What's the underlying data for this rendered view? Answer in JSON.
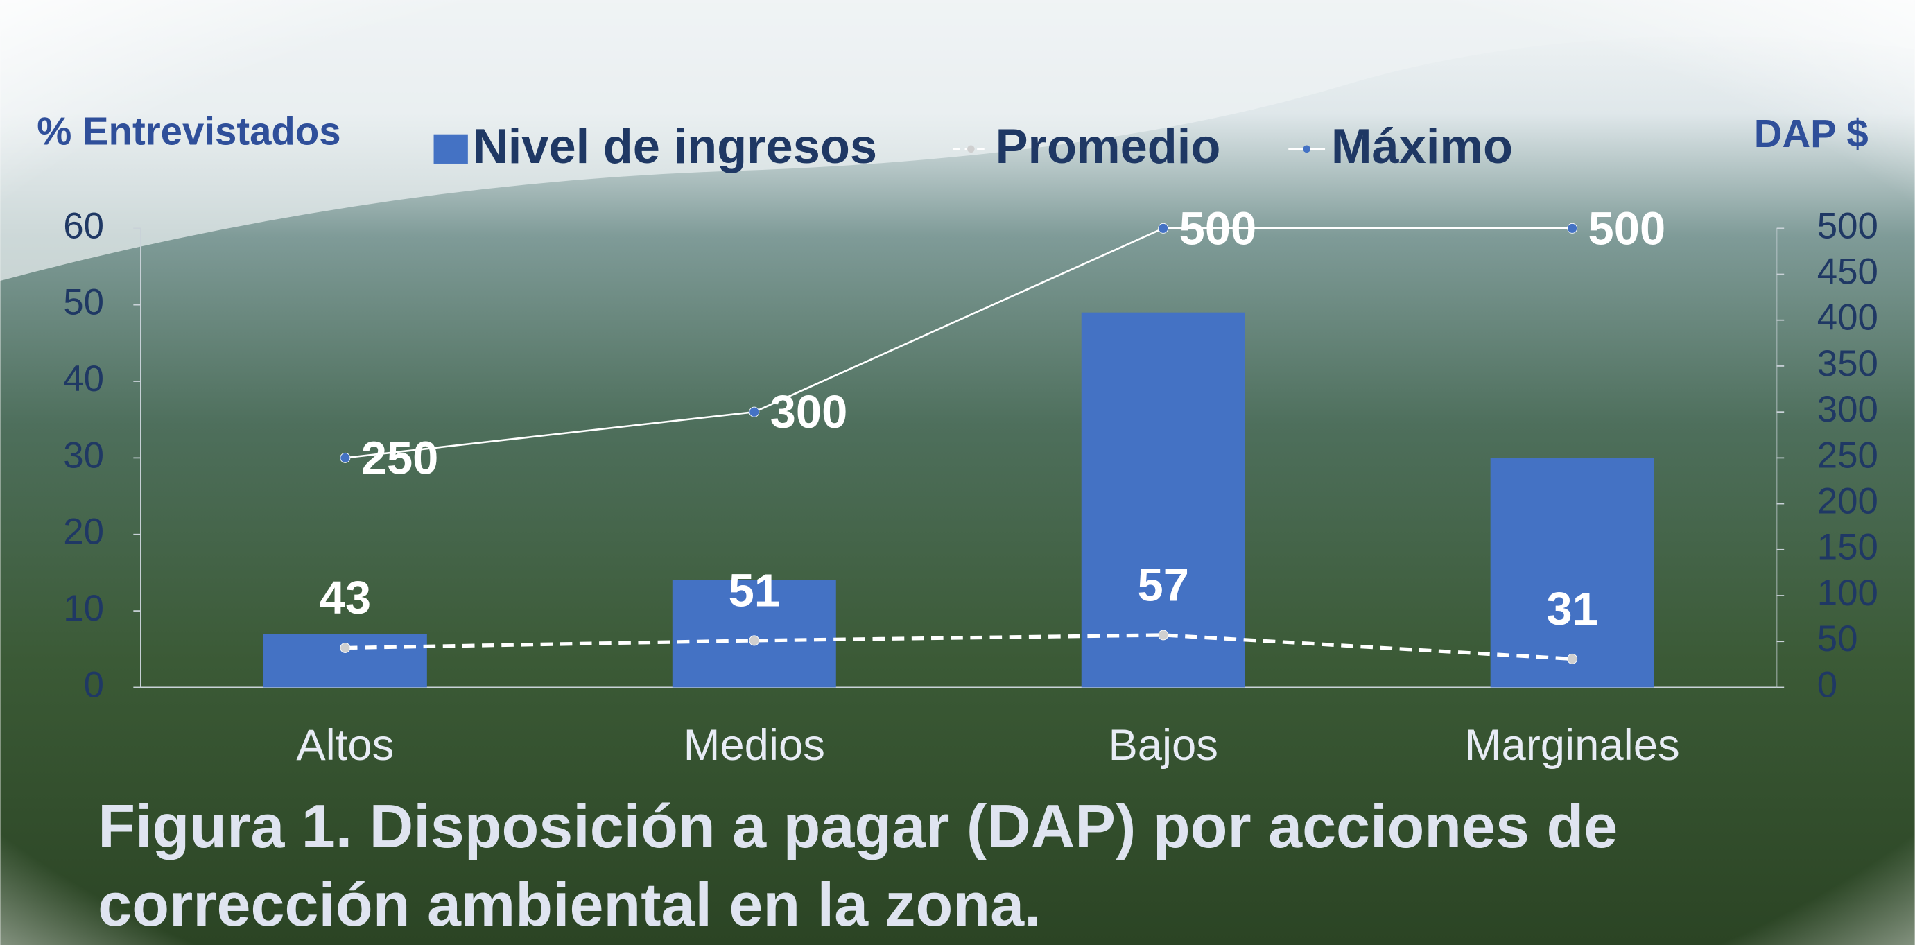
{
  "chart_data": {
    "type": "bar",
    "title": "Figura 1. Disposición a pagar (DAP) por acciones de corrección ambiental en la zona.",
    "ylabel": "% Entrevistados",
    "y2label": "DAP $",
    "categories": [
      "Altos",
      "Medios",
      "Bajos",
      "Marginales"
    ],
    "series": [
      {
        "name": "Nivel de ingresos",
        "type": "bar",
        "color": "#4472c4",
        "values": [
          7,
          14,
          49,
          30
        ]
      },
      {
        "name": "Promedio",
        "type": "line",
        "axis": "y2",
        "color": "#ffffff",
        "dashed": true,
        "values": [
          43,
          51,
          57,
          31
        ]
      },
      {
        "name": "Máximo",
        "type": "line",
        "axis": "y2",
        "color": "#ffffff",
        "marker_color": "#4472c4",
        "values": [
          250,
          300,
          500,
          500
        ]
      }
    ],
    "ylim": [
      0,
      60
    ],
    "yticks": [
      0,
      10,
      20,
      30,
      40,
      50,
      60
    ],
    "y2lim": [
      0,
      500
    ],
    "y2ticks": [
      0,
      50,
      100,
      150,
      200,
      250,
      300,
      350,
      400,
      450,
      500
    ],
    "legend": "top",
    "grid": false
  }
}
